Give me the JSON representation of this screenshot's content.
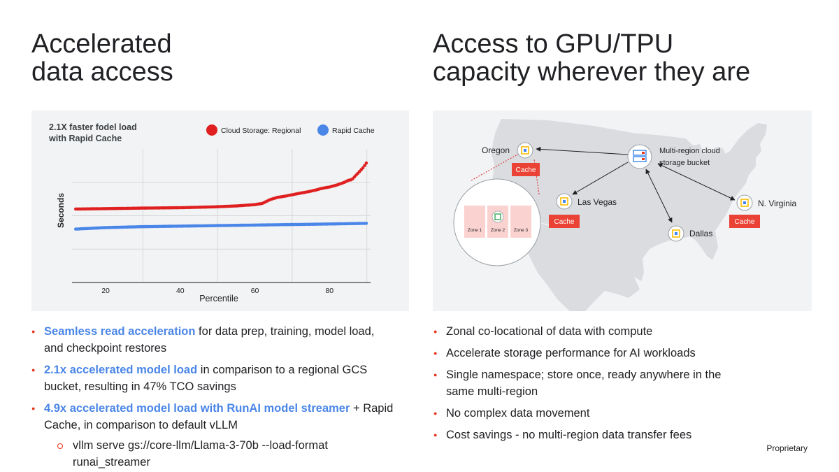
{
  "left": {
    "title_line1": "Accelerated",
    "title_line2": "data access",
    "bullets": [
      {
        "highlight": "Seamless read acceleration",
        "text": " for data prep, training, model load, and checkpoint restores"
      },
      {
        "highlight": "2.1x accelerated model load",
        "text": " in comparison to a regional GCS bucket, resulting in 47% TCO savings"
      },
      {
        "highlight": "4.9x accelerated model load with RunAI model streamer",
        "text": " + Rapid Cache, in comparison to default vLLM"
      }
    ],
    "sub_bullet": "vllm serve gs://core-llm/Llama-3-70b --load-format runai_streamer"
  },
  "right": {
    "title_line1": "Access to GPU/TPU",
    "title_line2": "capacity wherever they are",
    "bullets": [
      "Zonal co-locational of data with compute",
      "Accelerate storage performance for AI workloads",
      "Single namespace; store once, ready anywhere in the same multi-region",
      "No complex data movement",
      "Cost savings - no multi-region data transfer fees"
    ]
  },
  "footer": "Proprietary",
  "colors": {
    "accent_red": "#e8341c",
    "series_red": "#e02020",
    "series_blue": "#4a86e8",
    "highlight": "#4a86e8"
  },
  "chart_data": {
    "type": "scatter",
    "title": "2.1X faster fodel load with Rapid Cache",
    "xlabel": "Percentile",
    "ylabel": "Seconds",
    "x_ticks": [
      20,
      40,
      60,
      80
    ],
    "xlim": [
      11,
      91
    ],
    "ylim": [
      0,
      100
    ],
    "grid": true,
    "legend_position": "top-right",
    "series": [
      {
        "name": "Cloud Storage: Regional",
        "color": "#e02020",
        "x": [
          12,
          20,
          30,
          40,
          50,
          55,
          60,
          62,
          64,
          66,
          68,
          70,
          72,
          74,
          76,
          78,
          80,
          82,
          84,
          85,
          86,
          87,
          88,
          89,
          90
        ],
        "y": [
          55.0,
          55.3,
          55.7,
          56.0,
          56.7,
          57.3,
          58.3,
          59.2,
          62.0,
          63.7,
          64.6,
          65.7,
          66.8,
          67.8,
          69.0,
          70.5,
          71.5,
          73.0,
          75.0,
          76.5,
          77.0,
          80.0,
          83.0,
          86.0,
          90.0
        ]
      },
      {
        "name": "Rapid Cache",
        "color": "#4a86e8",
        "x": [
          12,
          20,
          30,
          40,
          50,
          60,
          70,
          80,
          90
        ],
        "y": [
          40.0,
          41.1,
          41.8,
          42.2,
          42.6,
          43.0,
          43.4,
          43.8,
          44.3
        ]
      }
    ]
  },
  "map": {
    "title": "Multi-region cloud storage bucket",
    "locations": [
      {
        "name": "Oregon",
        "cache": "Cache"
      },
      {
        "name": "Las Vegas",
        "cache": "Cache"
      },
      {
        "name": "Dallas",
        "cache": ""
      },
      {
        "name": "N. Virginia",
        "cache": "Cache"
      }
    ],
    "zones": [
      "Zone 1",
      "Zone 2",
      "Zone 3"
    ]
  }
}
